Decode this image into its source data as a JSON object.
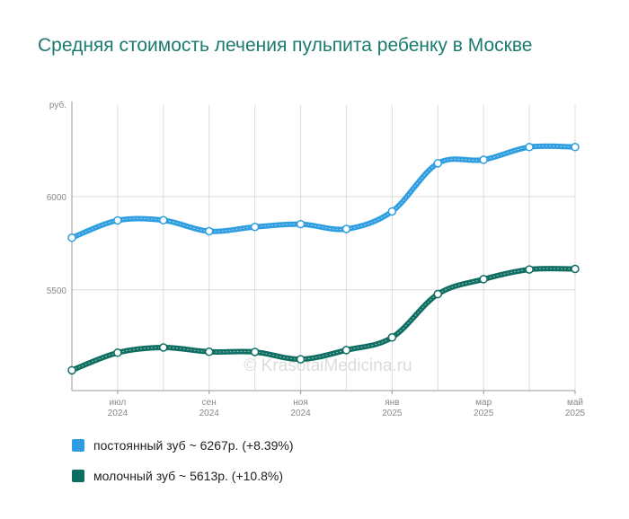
{
  "chart_data": {
    "type": "line",
    "title": "Средняя стоимость лечения пульпита ребенку в Москве",
    "ylabel": "руб.",
    "ylim": [
      4960,
      6490
    ],
    "yticks": [
      5500,
      6000
    ],
    "x": [
      "2024-06",
      "2024-07",
      "2024-08",
      "2024-09",
      "2024-10",
      "2024-11",
      "2024-12",
      "2025-01",
      "2025-02",
      "2025-03",
      "2025-04",
      "2025-05"
    ],
    "xtick_labels": [
      {
        "index": 1,
        "month": "июл",
        "year": "2024"
      },
      {
        "index": 3,
        "month": "сен",
        "year": "2024"
      },
      {
        "index": 5,
        "month": "ноя",
        "year": "2024"
      },
      {
        "index": 7,
        "month": "янв",
        "year": "2025"
      },
      {
        "index": 9,
        "month": "мар",
        "year": "2025"
      },
      {
        "index": 11,
        "month": "май",
        "year": "2025"
      }
    ],
    "series": [
      {
        "name": "постоянный зуб",
        "color": "#2e9ee0",
        "values": [
          5779,
          5872,
          5873,
          5814,
          5837,
          5852,
          5826,
          5920,
          6178,
          6197,
          6265,
          6265
        ]
      },
      {
        "name": "молочный зуб",
        "color": "#0f6e62",
        "values": [
          5069,
          5163,
          5191,
          5168,
          5167,
          5128,
          5177,
          5245,
          5477,
          5557,
          5609,
          5612
        ]
      }
    ],
    "grid": true,
    "watermark": "© KrasotaiMedicina.ru"
  },
  "legend": [
    {
      "text": "постоянный зуб ~ 6267р. (+8.39%)",
      "color": "#2e9ee0"
    },
    {
      "text": "молочный зуб ~ 5613р. (+10.8%)",
      "color": "#0f6e62"
    }
  ]
}
